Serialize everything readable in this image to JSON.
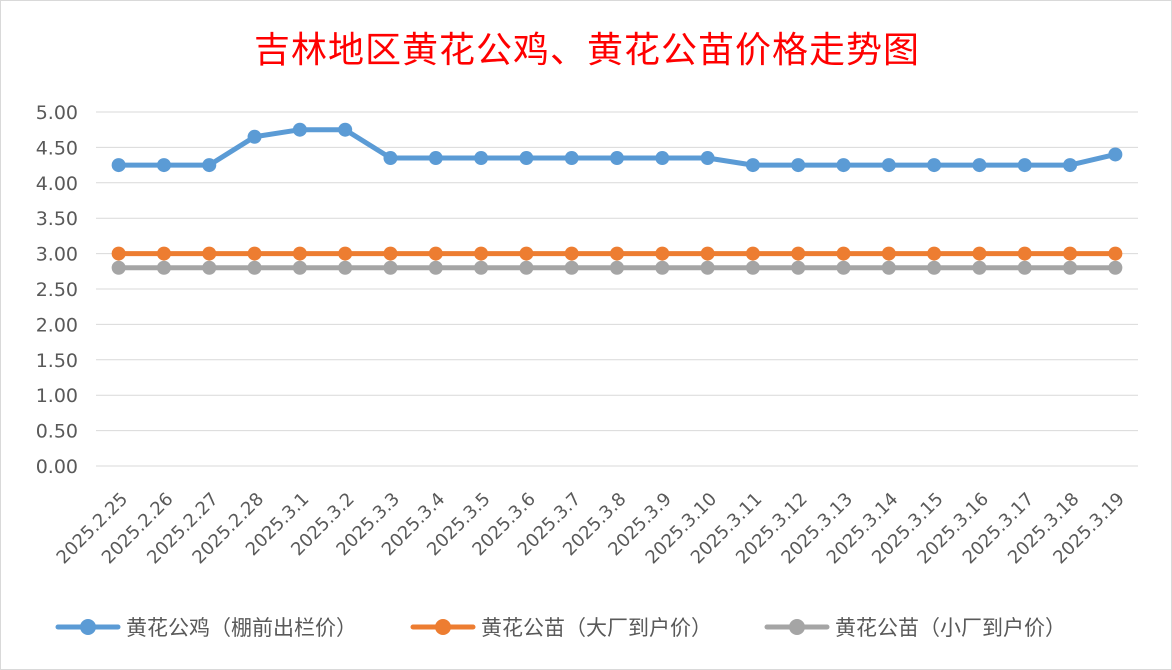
{
  "chart_data": {
    "type": "line",
    "title": "吉林地区黄花公鸡、黄花公苗价格走势图",
    "xlabel": "",
    "ylabel": "",
    "ylim": [
      0,
      5
    ],
    "yticks": [
      "0.00",
      "0.50",
      "1.00",
      "1.50",
      "2.00",
      "2.50",
      "3.00",
      "3.50",
      "4.00",
      "4.50",
      "5.00"
    ],
    "categories": [
      "2025.2.25",
      "2025.2.26",
      "2025.2.27",
      "2025.2.28",
      "2025.3.1",
      "2025.3.2",
      "2025.3.3",
      "2025.3.4",
      "2025.3.5",
      "2025.3.6",
      "2025.3.7",
      "2025.3.8",
      "2025.3.9",
      "2025.3.10",
      "2025.3.11",
      "2025.3.12",
      "2025.3.13",
      "2025.3.14",
      "2025.3.15",
      "2025.3.16",
      "2025.3.17",
      "2025.3.18",
      "2025.3.19"
    ],
    "series": [
      {
        "name": "黄花公鸡（棚前出栏价）",
        "color": "#5b9bd5",
        "values": [
          4.25,
          4.25,
          4.25,
          4.65,
          4.75,
          4.75,
          4.35,
          4.35,
          4.35,
          4.35,
          4.35,
          4.35,
          4.35,
          4.35,
          4.25,
          4.25,
          4.25,
          4.25,
          4.25,
          4.25,
          4.25,
          4.25,
          4.4
        ]
      },
      {
        "name": "黄花公苗（大厂到户价）",
        "color": "#ed7d31",
        "values": [
          3.0,
          3.0,
          3.0,
          3.0,
          3.0,
          3.0,
          3.0,
          3.0,
          3.0,
          3.0,
          3.0,
          3.0,
          3.0,
          3.0,
          3.0,
          3.0,
          3.0,
          3.0,
          3.0,
          3.0,
          3.0,
          3.0,
          3.0
        ]
      },
      {
        "name": "黄花公苗（小厂到户价）",
        "color": "#a5a5a5",
        "values": [
          2.8,
          2.8,
          2.8,
          2.8,
          2.8,
          2.8,
          2.8,
          2.8,
          2.8,
          2.8,
          2.8,
          2.8,
          2.8,
          2.8,
          2.8,
          2.8,
          2.8,
          2.8,
          2.8,
          2.8,
          2.8,
          2.8,
          2.8
        ]
      }
    ],
    "grid": true,
    "legend": "bottom"
  }
}
